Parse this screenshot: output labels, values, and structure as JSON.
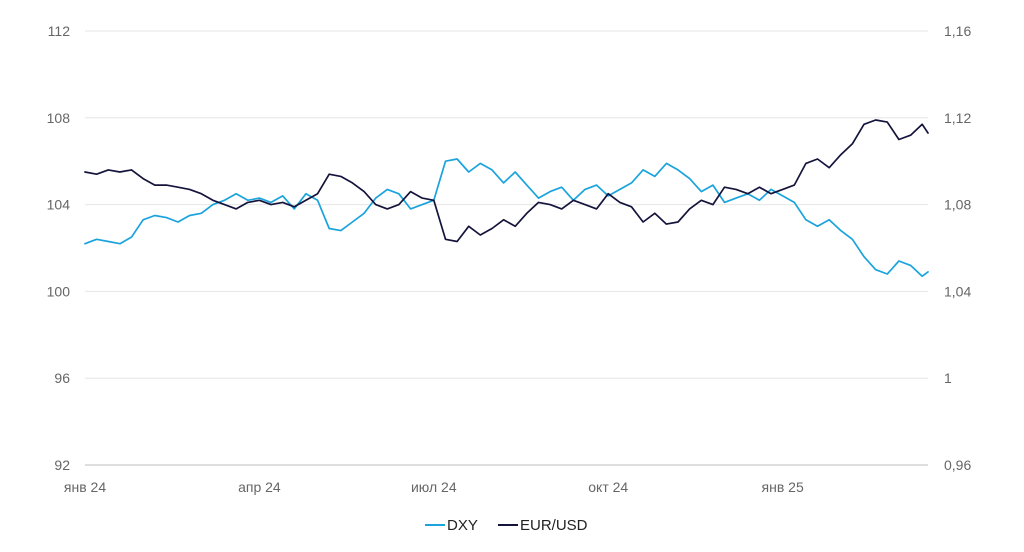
{
  "chart_data": {
    "type": "line",
    "title": "",
    "xlabel": "",
    "ylabel": "",
    "grid": true,
    "legend_position": "bottom-center",
    "x_tick_labels": [
      "янв 24",
      "апр 24",
      "июл 24",
      "окт 24",
      "янв 25"
    ],
    "y_left": {
      "min": 92,
      "max": 112,
      "ticks": [
        92,
        96,
        100,
        104,
        108,
        112
      ],
      "tick_labels": [
        "92",
        "96",
        "100",
        "104",
        "108",
        "112"
      ]
    },
    "y_right": {
      "min": 0.96,
      "max": 1.16,
      "ticks": [
        0.96,
        1.0,
        1.04,
        1.08,
        1.12,
        1.16
      ],
      "tick_labels": [
        "0,96",
        "1",
        "1,04",
        "1,08",
        "1,12",
        "1,16"
      ]
    },
    "x_range": [
      0,
      14.5
    ],
    "series": [
      {
        "name": "DXY",
        "axis": "left",
        "color": "#1aa3dd",
        "points": [
          [
            0.0,
            102.2
          ],
          [
            0.2,
            102.4
          ],
          [
            0.4,
            102.3
          ],
          [
            0.6,
            102.2
          ],
          [
            0.8,
            102.5
          ],
          [
            1.0,
            103.3
          ],
          [
            1.2,
            103.5
          ],
          [
            1.4,
            103.4
          ],
          [
            1.6,
            103.2
          ],
          [
            1.8,
            103.5
          ],
          [
            2.0,
            103.6
          ],
          [
            2.2,
            104.0
          ],
          [
            2.4,
            104.2
          ],
          [
            2.6,
            104.5
          ],
          [
            2.8,
            104.2
          ],
          [
            3.0,
            104.3
          ],
          [
            3.2,
            104.1
          ],
          [
            3.4,
            104.4
          ],
          [
            3.6,
            103.8
          ],
          [
            3.8,
            104.5
          ],
          [
            4.0,
            104.2
          ],
          [
            4.2,
            102.9
          ],
          [
            4.4,
            102.8
          ],
          [
            4.6,
            103.2
          ],
          [
            4.8,
            103.6
          ],
          [
            5.0,
            104.3
          ],
          [
            5.2,
            104.7
          ],
          [
            5.4,
            104.5
          ],
          [
            5.6,
            103.8
          ],
          [
            5.8,
            104.0
          ],
          [
            6.0,
            104.2
          ],
          [
            6.2,
            106.0
          ],
          [
            6.4,
            106.1
          ],
          [
            6.6,
            105.5
          ],
          [
            6.8,
            105.9
          ],
          [
            7.0,
            105.6
          ],
          [
            7.2,
            105.0
          ],
          [
            7.4,
            105.5
          ],
          [
            7.6,
            104.9
          ],
          [
            7.8,
            104.3
          ],
          [
            8.0,
            104.6
          ],
          [
            8.2,
            104.8
          ],
          [
            8.4,
            104.2
          ],
          [
            8.6,
            104.7
          ],
          [
            8.8,
            104.9
          ],
          [
            9.0,
            104.4
          ],
          [
            9.2,
            104.7
          ],
          [
            9.4,
            105.0
          ],
          [
            9.6,
            105.6
          ],
          [
            9.8,
            105.3
          ],
          [
            10.0,
            105.9
          ],
          [
            10.2,
            105.6
          ],
          [
            10.4,
            105.2
          ],
          [
            10.6,
            104.6
          ],
          [
            10.8,
            104.9
          ],
          [
            11.0,
            104.1
          ],
          [
            11.2,
            104.3
          ],
          [
            11.4,
            104.5
          ],
          [
            11.6,
            104.2
          ],
          [
            11.8,
            104.7
          ],
          [
            12.0,
            104.4
          ],
          [
            12.2,
            104.1
          ],
          [
            12.4,
            103.3
          ],
          [
            12.6,
            103.0
          ],
          [
            12.8,
            103.3
          ],
          [
            13.0,
            102.8
          ],
          [
            13.2,
            102.4
          ],
          [
            13.4,
            101.6
          ],
          [
            13.6,
            101.0
          ],
          [
            13.8,
            100.8
          ],
          [
            14.0,
            101.4
          ],
          [
            14.2,
            101.2
          ],
          [
            14.4,
            100.7
          ],
          [
            14.5,
            100.9
          ]
        ]
      },
      {
        "name": "EUR/USD",
        "axis": "right",
        "color": "#14143c",
        "points": [
          [
            0.0,
            1.095
          ],
          [
            0.2,
            1.094
          ],
          [
            0.4,
            1.096
          ],
          [
            0.6,
            1.095
          ],
          [
            0.8,
            1.096
          ],
          [
            1.0,
            1.092
          ],
          [
            1.2,
            1.089
          ],
          [
            1.4,
            1.089
          ],
          [
            1.6,
            1.088
          ],
          [
            1.8,
            1.087
          ],
          [
            2.0,
            1.085
          ],
          [
            2.2,
            1.082
          ],
          [
            2.4,
            1.08
          ],
          [
            2.6,
            1.078
          ],
          [
            2.8,
            1.081
          ],
          [
            3.0,
            1.082
          ],
          [
            3.2,
            1.08
          ],
          [
            3.4,
            1.081
          ],
          [
            3.6,
            1.079
          ],
          [
            3.8,
            1.082
          ],
          [
            4.0,
            1.085
          ],
          [
            4.2,
            1.094
          ],
          [
            4.4,
            1.093
          ],
          [
            4.6,
            1.09
          ],
          [
            4.8,
            1.086
          ],
          [
            5.0,
            1.08
          ],
          [
            5.2,
            1.078
          ],
          [
            5.4,
            1.08
          ],
          [
            5.6,
            1.086
          ],
          [
            5.8,
            1.083
          ],
          [
            6.0,
            1.082
          ],
          [
            6.2,
            1.064
          ],
          [
            6.4,
            1.063
          ],
          [
            6.6,
            1.07
          ],
          [
            6.8,
            1.066
          ],
          [
            7.0,
            1.069
          ],
          [
            7.2,
            1.073
          ],
          [
            7.4,
            1.07
          ],
          [
            7.6,
            1.076
          ],
          [
            7.8,
            1.081
          ],
          [
            8.0,
            1.08
          ],
          [
            8.2,
            1.078
          ],
          [
            8.4,
            1.082
          ],
          [
            8.6,
            1.08
          ],
          [
            8.8,
            1.078
          ],
          [
            9.0,
            1.085
          ],
          [
            9.2,
            1.081
          ],
          [
            9.4,
            1.079
          ],
          [
            9.6,
            1.072
          ],
          [
            9.8,
            1.076
          ],
          [
            10.0,
            1.071
          ],
          [
            10.2,
            1.072
          ],
          [
            10.4,
            1.078
          ],
          [
            10.6,
            1.082
          ],
          [
            10.8,
            1.08
          ],
          [
            11.0,
            1.088
          ],
          [
            11.2,
            1.087
          ],
          [
            11.4,
            1.085
          ],
          [
            11.6,
            1.088
          ],
          [
            11.8,
            1.085
          ],
          [
            12.0,
            1.087
          ],
          [
            12.2,
            1.089
          ],
          [
            12.4,
            1.099
          ],
          [
            12.6,
            1.101
          ],
          [
            12.8,
            1.097
          ],
          [
            13.0,
            1.103
          ],
          [
            13.2,
            1.108
          ],
          [
            13.4,
            1.117
          ],
          [
            13.6,
            1.119
          ],
          [
            13.8,
            1.118
          ],
          [
            14.0,
            1.11
          ],
          [
            14.2,
            1.112
          ],
          [
            14.4,
            1.117
          ],
          [
            14.5,
            1.113
          ]
        ]
      }
    ]
  }
}
